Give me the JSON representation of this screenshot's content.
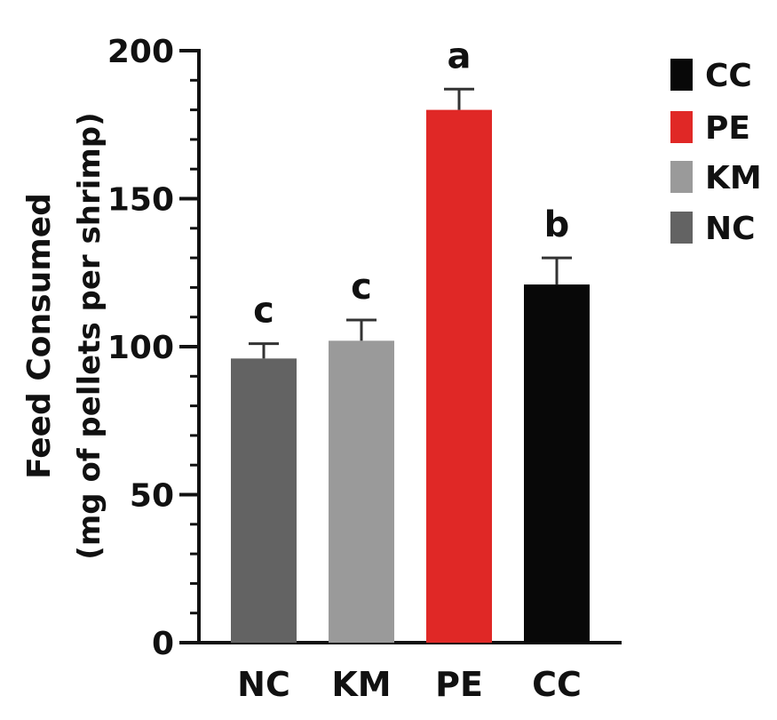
{
  "chart_data": {
    "type": "bar",
    "title": "",
    "ylabel_line1": "Feed Consumed",
    "ylabel_line2": "(mg of pellets per shrimp)",
    "xlabel": "",
    "ylim": [
      0,
      200
    ],
    "yticks": [
      0,
      50,
      100,
      150,
      200
    ],
    "categories": [
      "NC",
      "KM",
      "PE",
      "CC"
    ],
    "values": [
      96,
      102,
      180,
      121
    ],
    "errors": [
      5,
      7,
      7,
      9
    ],
    "significance_letters": [
      "c",
      "c",
      "a",
      "b"
    ],
    "colors": [
      "#636363",
      "#9a9a9a",
      "#e02826",
      "#080808"
    ],
    "grid": false,
    "legend": {
      "placement": "top-right",
      "entries": [
        {
          "label": "CC",
          "color": "#080808"
        },
        {
          "label": "PE",
          "color": "#e02826"
        },
        {
          "label": "KM",
          "color": "#9a9a9a"
        },
        {
          "label": "NC",
          "color": "#636363"
        }
      ]
    }
  }
}
